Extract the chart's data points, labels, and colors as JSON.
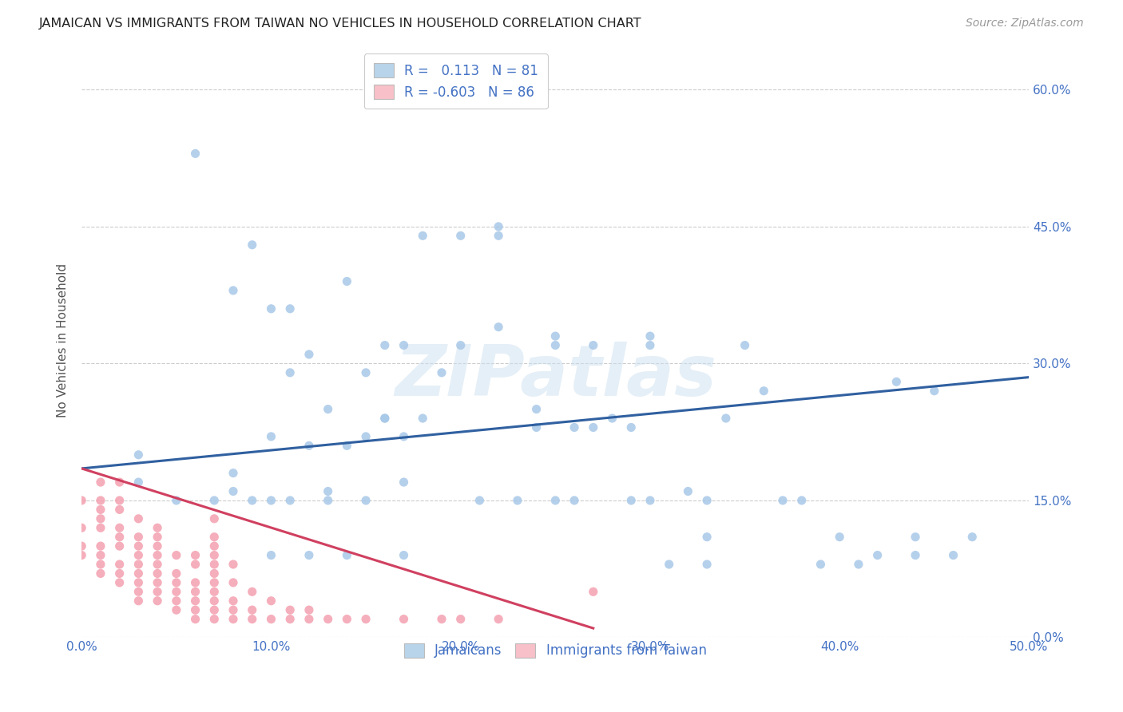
{
  "title": "JAMAICAN VS IMMIGRANTS FROM TAIWAN NO VEHICLES IN HOUSEHOLD CORRELATION CHART",
  "source": "Source: ZipAtlas.com",
  "ylabel": "No Vehicles in Household",
  "xlim": [
    0.0,
    0.5
  ],
  "ylim": [
    0.0,
    0.65
  ],
  "x_ticks": [
    0.0,
    0.1,
    0.2,
    0.3,
    0.4,
    0.5
  ],
  "x_tick_labels": [
    "0.0%",
    "10.0%",
    "20.0%",
    "30.0%",
    "40.0%",
    "50.0%"
  ],
  "y_ticks": [
    0.0,
    0.15,
    0.3,
    0.45,
    0.6
  ],
  "y_tick_labels": [
    "0.0%",
    "15.0%",
    "30.0%",
    "45.0%",
    "60.0%"
  ],
  "jamaicans_R": 0.113,
  "jamaicans_N": 81,
  "taiwan_R": -0.603,
  "taiwan_N": 86,
  "blue_scatter_color": "#a8c8e8",
  "blue_line_color": "#3060a0",
  "blue_legend_color": "#b8d4ea",
  "pink_scatter_color": "#f4a0b0",
  "pink_line_color": "#d04060",
  "pink_legend_color": "#f8c0c8",
  "text_color": "#4472C4",
  "watermark": "ZIPatlas",
  "jamaicans_x": [
    0.03,
    0.06,
    0.08,
    0.08,
    0.09,
    0.1,
    0.1,
    0.1,
    0.11,
    0.11,
    0.12,
    0.12,
    0.12,
    0.13,
    0.13,
    0.13,
    0.14,
    0.14,
    0.14,
    0.15,
    0.15,
    0.16,
    0.16,
    0.17,
    0.17,
    0.17,
    0.18,
    0.18,
    0.19,
    0.2,
    0.2,
    0.21,
    0.22,
    0.22,
    0.23,
    0.24,
    0.24,
    0.25,
    0.25,
    0.25,
    0.26,
    0.26,
    0.27,
    0.27,
    0.28,
    0.29,
    0.29,
    0.3,
    0.3,
    0.3,
    0.31,
    0.32,
    0.33,
    0.33,
    0.33,
    0.34,
    0.35,
    0.36,
    0.37,
    0.38,
    0.39,
    0.4,
    0.41,
    0.42,
    0.43,
    0.44,
    0.44,
    0.45,
    0.46,
    0.47,
    0.03,
    0.05,
    0.07,
    0.08,
    0.09,
    0.1,
    0.11,
    0.15,
    0.16,
    0.17,
    0.22
  ],
  "jamaicans_y": [
    0.2,
    0.53,
    0.16,
    0.18,
    0.15,
    0.09,
    0.15,
    0.22,
    0.15,
    0.29,
    0.09,
    0.21,
    0.31,
    0.15,
    0.16,
    0.25,
    0.09,
    0.21,
    0.39,
    0.15,
    0.29,
    0.24,
    0.32,
    0.09,
    0.17,
    0.32,
    0.24,
    0.44,
    0.29,
    0.32,
    0.44,
    0.15,
    0.34,
    0.44,
    0.15,
    0.23,
    0.25,
    0.15,
    0.32,
    0.33,
    0.15,
    0.23,
    0.23,
    0.32,
    0.24,
    0.15,
    0.23,
    0.15,
    0.32,
    0.33,
    0.08,
    0.16,
    0.08,
    0.11,
    0.15,
    0.24,
    0.32,
    0.27,
    0.15,
    0.15,
    0.08,
    0.11,
    0.08,
    0.09,
    0.28,
    0.09,
    0.11,
    0.27,
    0.09,
    0.11,
    0.17,
    0.15,
    0.15,
    0.38,
    0.43,
    0.36,
    0.36,
    0.22,
    0.24,
    0.22,
    0.45
  ],
  "taiwan_x": [
    0.0,
    0.0,
    0.0,
    0.0,
    0.01,
    0.01,
    0.01,
    0.01,
    0.01,
    0.01,
    0.01,
    0.01,
    0.01,
    0.02,
    0.02,
    0.02,
    0.02,
    0.02,
    0.02,
    0.02,
    0.02,
    0.02,
    0.03,
    0.03,
    0.03,
    0.03,
    0.03,
    0.03,
    0.03,
    0.03,
    0.03,
    0.04,
    0.04,
    0.04,
    0.04,
    0.04,
    0.04,
    0.04,
    0.04,
    0.04,
    0.05,
    0.05,
    0.05,
    0.05,
    0.05,
    0.05,
    0.06,
    0.06,
    0.06,
    0.06,
    0.06,
    0.06,
    0.06,
    0.07,
    0.07,
    0.07,
    0.07,
    0.07,
    0.07,
    0.07,
    0.07,
    0.07,
    0.07,
    0.07,
    0.08,
    0.08,
    0.08,
    0.08,
    0.08,
    0.09,
    0.09,
    0.09,
    0.1,
    0.1,
    0.11,
    0.11,
    0.12,
    0.12,
    0.13,
    0.14,
    0.15,
    0.17,
    0.19,
    0.2,
    0.22,
    0.27
  ],
  "taiwan_y": [
    0.09,
    0.1,
    0.12,
    0.15,
    0.07,
    0.08,
    0.09,
    0.1,
    0.12,
    0.13,
    0.14,
    0.15,
    0.17,
    0.06,
    0.07,
    0.08,
    0.1,
    0.11,
    0.12,
    0.14,
    0.15,
    0.17,
    0.04,
    0.05,
    0.06,
    0.07,
    0.08,
    0.09,
    0.1,
    0.11,
    0.13,
    0.04,
    0.05,
    0.06,
    0.07,
    0.08,
    0.09,
    0.1,
    0.11,
    0.12,
    0.03,
    0.04,
    0.05,
    0.06,
    0.07,
    0.09,
    0.02,
    0.03,
    0.04,
    0.05,
    0.06,
    0.08,
    0.09,
    0.02,
    0.03,
    0.04,
    0.05,
    0.06,
    0.07,
    0.08,
    0.09,
    0.1,
    0.11,
    0.13,
    0.02,
    0.03,
    0.04,
    0.06,
    0.08,
    0.02,
    0.03,
    0.05,
    0.02,
    0.04,
    0.02,
    0.03,
    0.02,
    0.03,
    0.02,
    0.02,
    0.02,
    0.02,
    0.02,
    0.02,
    0.02,
    0.05
  ],
  "blue_line_x0": 0.0,
  "blue_line_y0": 0.185,
  "blue_line_x1": 0.5,
  "blue_line_y1": 0.285,
  "pink_line_x0": 0.0,
  "pink_line_y0": 0.185,
  "pink_line_x1": 0.27,
  "pink_line_y1": 0.01
}
